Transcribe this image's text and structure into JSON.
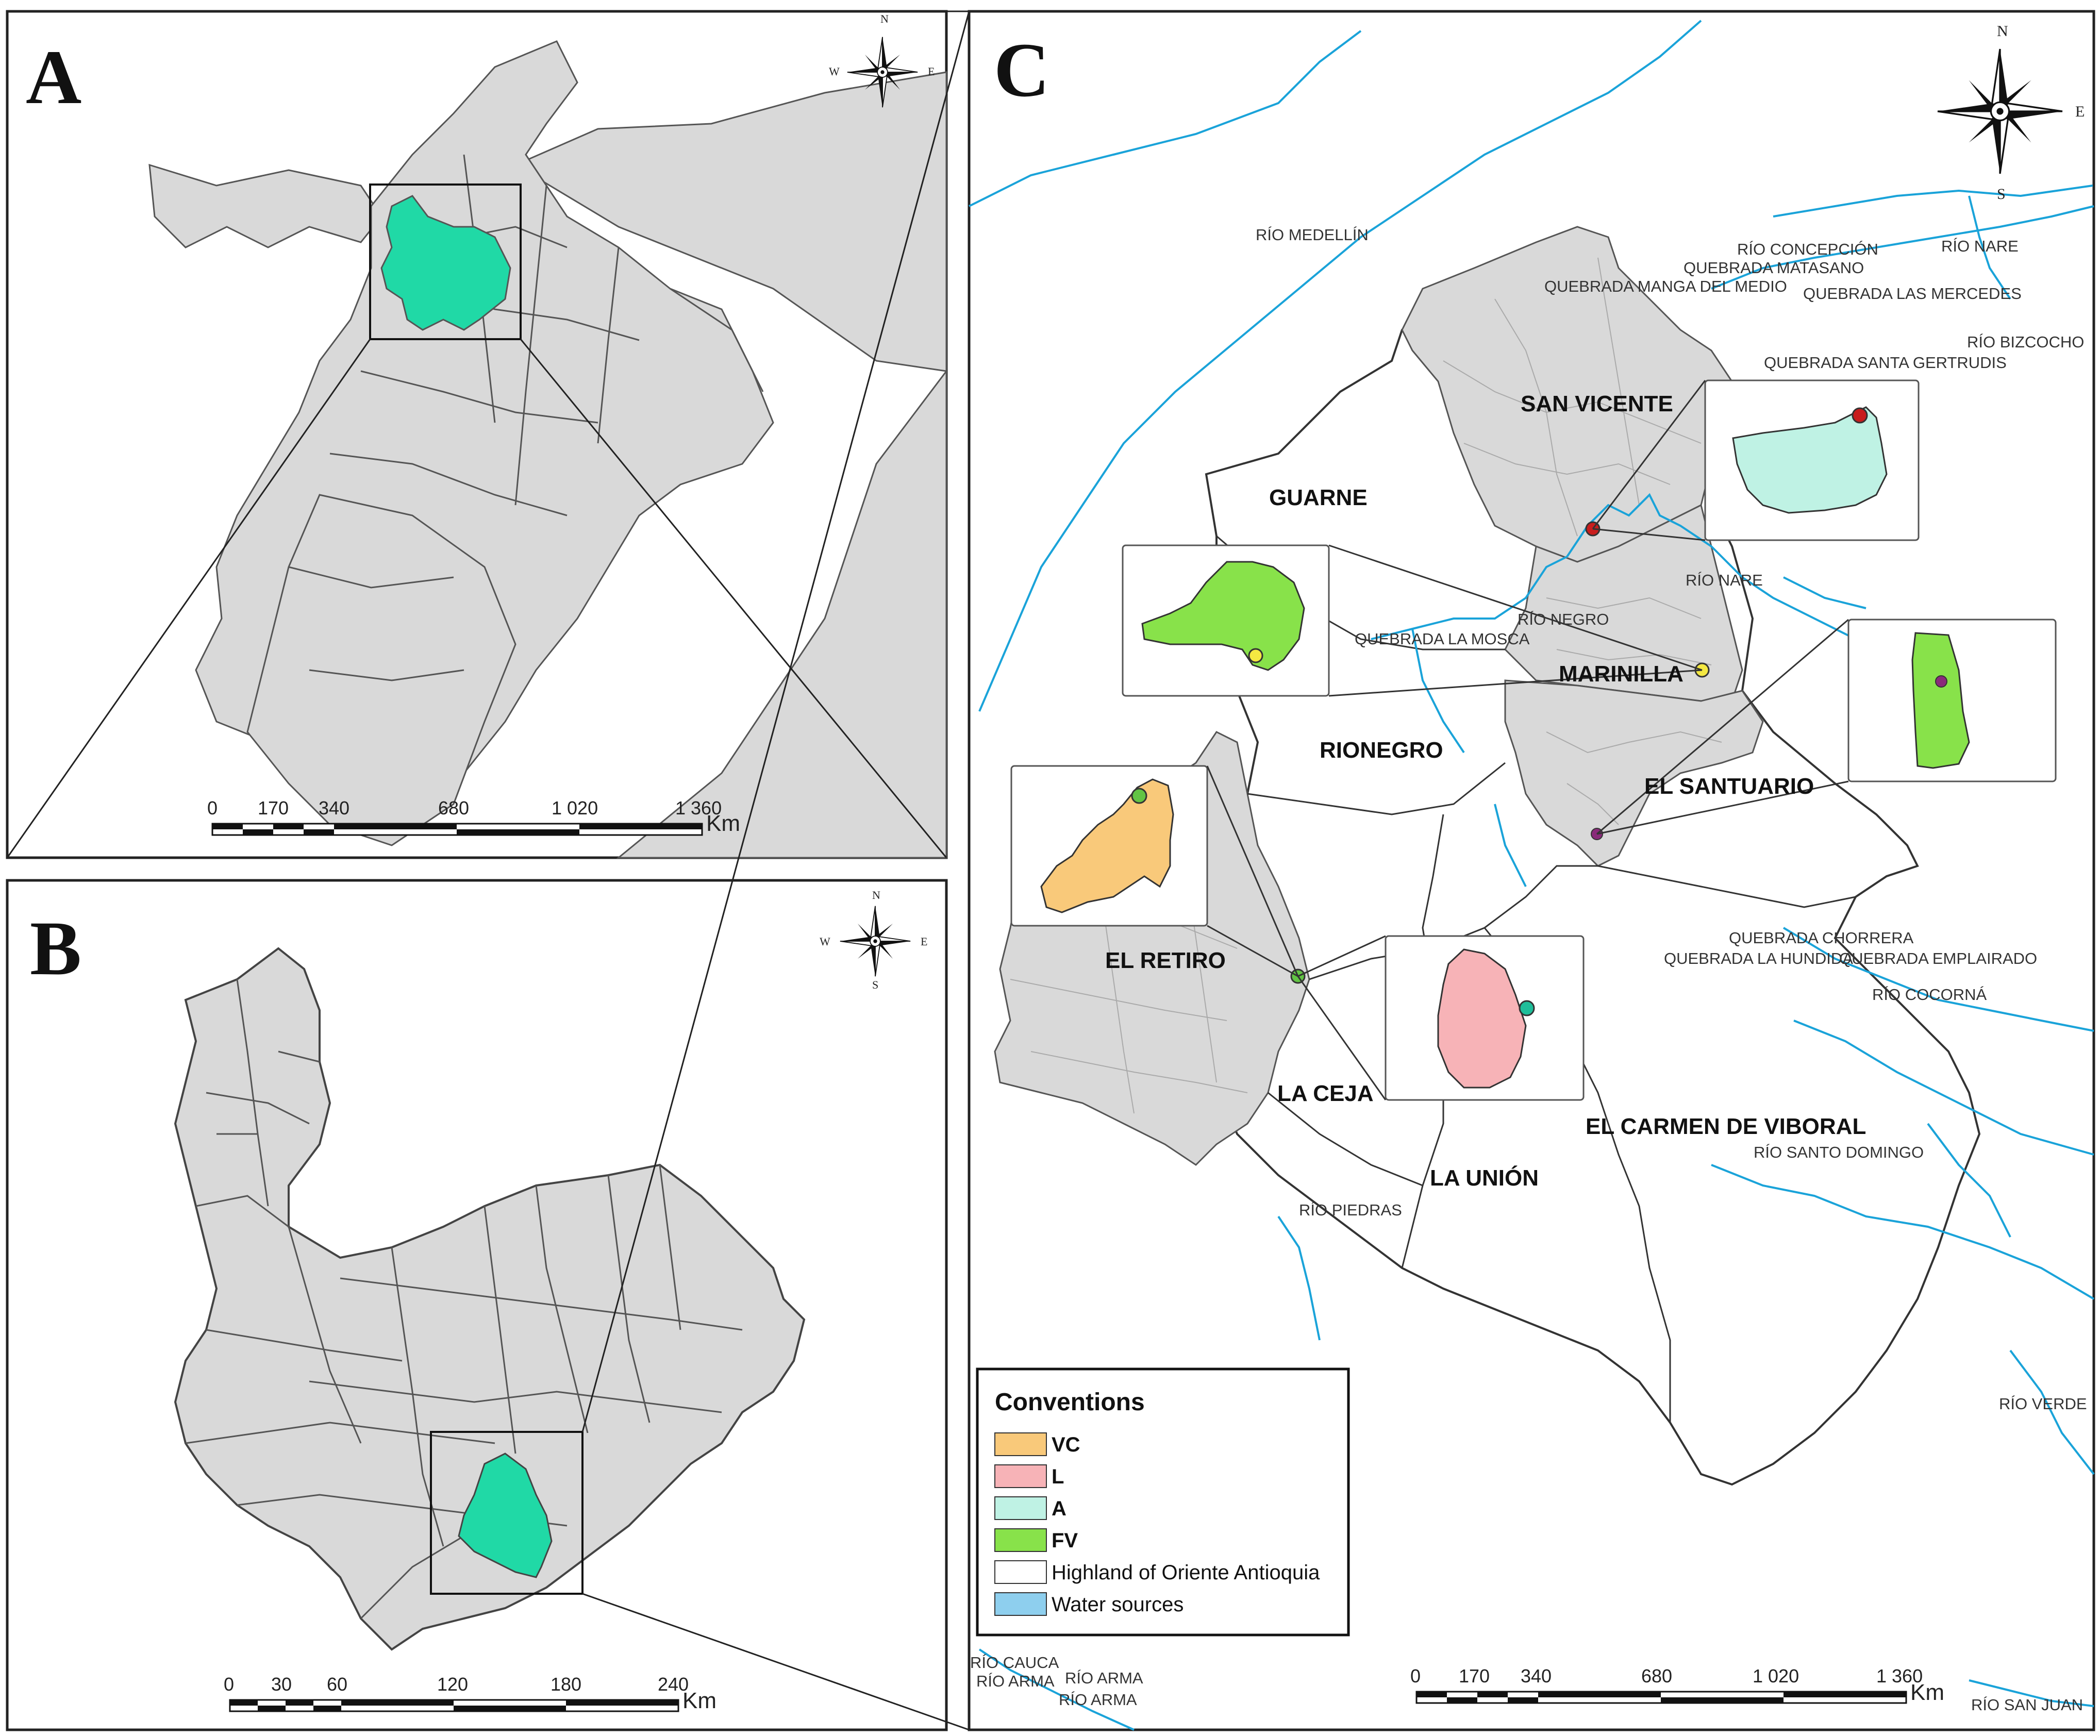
{
  "panels": {
    "a": "A",
    "b": "B",
    "c": "C"
  },
  "compass": {
    "n": "N",
    "s": "S",
    "e": "E",
    "w": "W"
  },
  "scale_a": {
    "ticks": [
      "0",
      "170",
      "340",
      "680",
      "1 020",
      "1 360"
    ],
    "unit": "Km"
  },
  "scale_b": {
    "ticks": [
      "0",
      "30",
      "60",
      "120",
      "180",
      "240"
    ],
    "unit": "Km"
  },
  "scale_c": {
    "ticks": [
      "0",
      "170",
      "340",
      "680",
      "1 020",
      "1 360"
    ],
    "unit": "Km"
  },
  "municipalities": [
    "SAN VICENTE",
    "GUARNE",
    "MARINILLA",
    "RIONEGRO",
    "EL SANTUARIO",
    "EL RETIRO",
    "LA CEJA",
    "EL CARMEN DE VIBORAL",
    "LA UNIÓN"
  ],
  "rivers": [
    "RÍO MEDELLÍN",
    "RÍO CONCEPCIÓN",
    "RÍO NARE",
    "QUEBRADA MATASANO",
    "QUEBRADA MANGA DEL MEDIO",
    "QUEBRADA LAS MERCEDES",
    "RÍO BIZCOCHO",
    "QUEBRADA SANTA GERTRUDIS",
    "RÍO NARE",
    "RÍO NEGRO",
    "QUEBRADA LA MOSCA",
    "QUEBRADA CHORRERA",
    "QUEBRADA LA HUNDIDA",
    "QUEBRADA EMPLAIRADO",
    "RÍO COCORNÁ",
    "RÍO SANTO DOMINGO",
    "RÍO PIEDRAS",
    "RÍO VERDE",
    "RÍO CAUCA",
    "RÍO ARMA",
    "RÍO ARMA",
    "RÍO ARMA",
    "RÍO SAN JUAN"
  ],
  "legend": {
    "title": "Conventions",
    "items": [
      {
        "label": "VC",
        "color": "#f9c97a"
      },
      {
        "label": "L",
        "color": "#f7b3b7"
      },
      {
        "label": "A",
        "color": "#bff2e4"
      },
      {
        "label": "FV",
        "color": "#88e24a"
      },
      {
        "label": "Highland of Oriente Antioquia",
        "color": "#ffffff"
      },
      {
        "label": "Water sources",
        "color": "#8ecfee"
      }
    ]
  },
  "colors": {
    "region_highlight": "#20d9a6",
    "land": "#d9d9d9",
    "river": "#1aa3d9",
    "study_area": "#d9d9d9"
  }
}
